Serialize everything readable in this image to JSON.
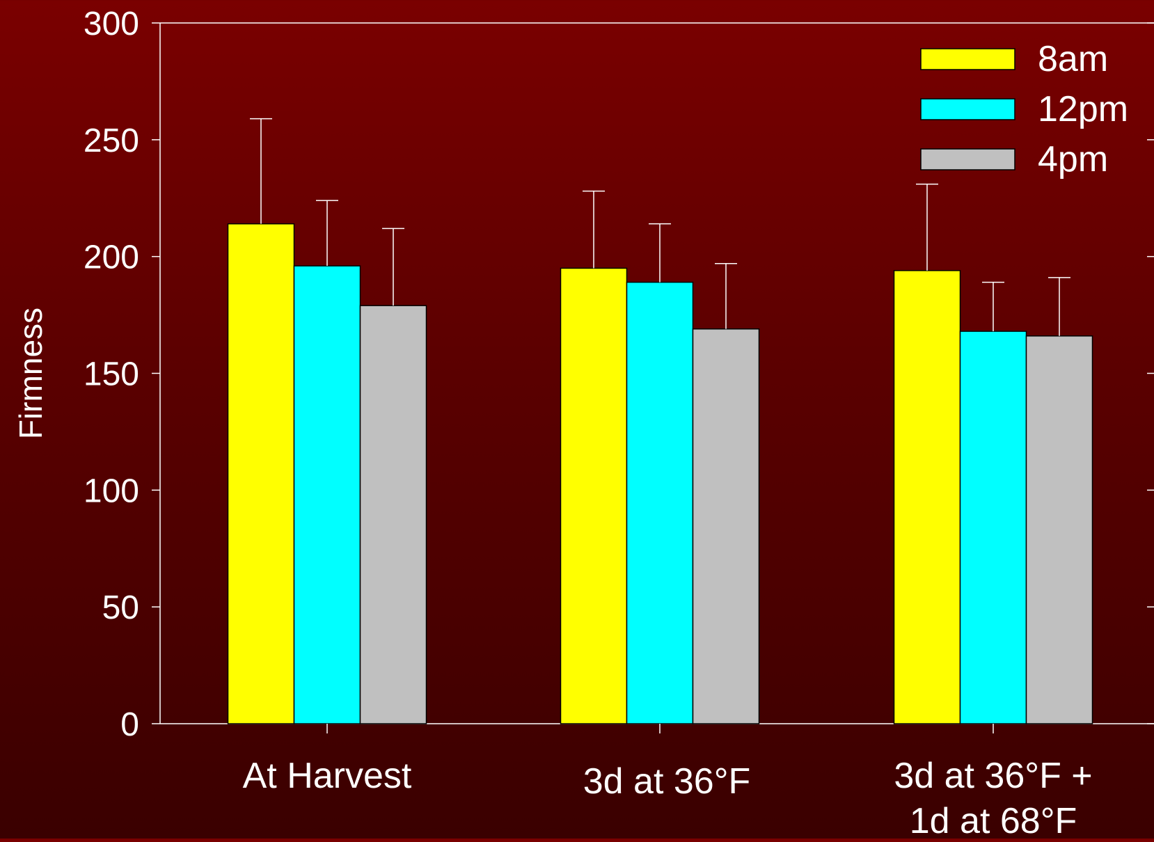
{
  "chart_data": {
    "type": "bar",
    "ylabel": "Firmness",
    "xlabel": "",
    "ylim": [
      0,
      300
    ],
    "yticks": [
      0,
      50,
      100,
      150,
      200,
      250,
      300
    ],
    "grid": false,
    "legend_position": "top-right",
    "categories": [
      [
        "At Harvest"
      ],
      [
        "3d at 36°F"
      ],
      [
        "3d at 36°F +",
        "1d at 68°F"
      ]
    ],
    "series": [
      {
        "name": "8am",
        "color": "#ffff00",
        "values": [
          214,
          195,
          194
        ],
        "errors": [
          45,
          33,
          37
        ]
      },
      {
        "name": "12pm",
        "color": "#00ffff",
        "values": [
          196,
          189,
          168
        ],
        "errors": [
          28,
          25,
          21
        ]
      },
      {
        "name": "4pm",
        "color": "#c0c0c0",
        "values": [
          179,
          169,
          166
        ],
        "errors": [
          33,
          28,
          25
        ]
      }
    ]
  }
}
